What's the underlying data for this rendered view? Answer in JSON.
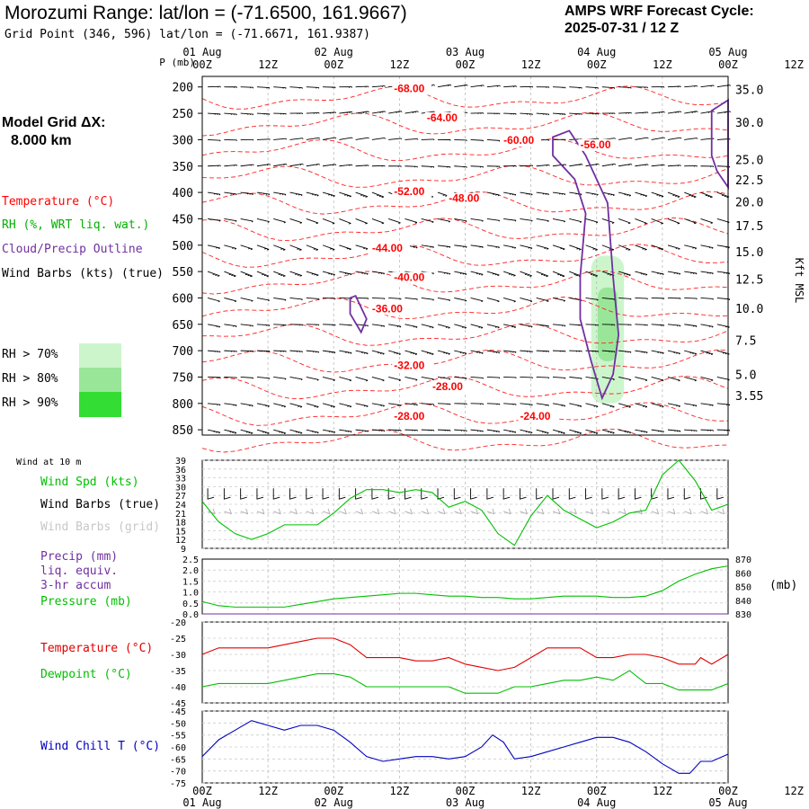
{
  "header": {
    "title": "Morozumi Range:  lat/lon = (-71.6500, 161.9667)",
    "grid_point": "Grid Point (346, 596) lat/lon = (-71.6671, 161.9387)",
    "cycle_line1": "AMPS WRF Forecast Cycle:",
    "cycle_line2": "2025-07-31 / 12  Z"
  },
  "model_grid": {
    "label": "Model Grid ΔX:",
    "value": "8.000 km"
  },
  "colors": {
    "temperature": "#ff0000",
    "dewpoint": "#00c000",
    "rh": "#00b000",
    "cloud": "#7030a0",
    "wind_chill": "#0000c0",
    "rh70": "#ccf5cc",
    "rh80": "#99e699",
    "rh90": "#33dd33"
  },
  "legend": {
    "temperature": "Temperature (°C)",
    "rh": "RH (%, WRT liq. wat.)",
    "cloud": "Cloud/Precip Outline",
    "wind_barbs": "Wind Barbs (kts) (true)",
    "rh70": "RH > 70%",
    "rh80": "RH > 80%",
    "rh90": "RH > 90%"
  },
  "time_axis": {
    "top_dates": [
      "01 Aug",
      "02 Aug",
      "03 Aug",
      "04 Aug",
      "05 Aug"
    ],
    "hours": [
      "00Z",
      "12Z",
      "00Z",
      "12Z",
      "00Z",
      "12Z",
      "00Z",
      "12Z",
      "00Z",
      "12Z"
    ],
    "bottom_dates": [
      "01 Aug",
      "02 Aug",
      "03 Aug",
      "04 Aug",
      "05 Aug"
    ],
    "range_hours": [
      0,
      96
    ]
  },
  "chart_data": [
    {
      "type": "heatmap",
      "pressure_axis_label": "P (mb)",
      "pressure_ticks": [
        200,
        250,
        300,
        350,
        400,
        450,
        500,
        550,
        600,
        650,
        700,
        750,
        800,
        850
      ],
      "pressure_range": [
        180,
        860
      ],
      "height_axis_label": "Kft MSL",
      "height_ticks": [
        {
          "label": "35.0",
          "p": 205
        },
        {
          "label": "30.0",
          "p": 267
        },
        {
          "label": "25.0",
          "p": 338
        },
        {
          "label": "22.5",
          "p": 376
        },
        {
          "label": "20.0",
          "p": 418
        },
        {
          "label": "17.5",
          "p": 463
        },
        {
          "label": "15.0",
          "p": 512
        },
        {
          "label": "12.5",
          "p": 564
        },
        {
          "label": "10.0",
          "p": 620
        },
        {
          "label": "7.5",
          "p": 680
        },
        {
          "label": "5.0",
          "p": 745
        },
        {
          "label": "3.55",
          "p": 785
        }
      ],
      "temperature_labels": [
        {
          "text": "-68.00",
          "t": 35,
          "p": 210
        },
        {
          "text": "-64.00",
          "t": 41,
          "p": 265
        },
        {
          "text": "-60.00",
          "t": 55,
          "p": 308
        },
        {
          "text": "-56.00",
          "t": 69,
          "p": 316
        },
        {
          "text": "-52.00",
          "t": 35,
          "p": 405
        },
        {
          "text": "-48.00",
          "t": 45,
          "p": 418
        },
        {
          "text": "-44.00",
          "t": 31,
          "p": 512
        },
        {
          "text": "-40.00",
          "t": 35,
          "p": 568
        },
        {
          "text": "-36.00",
          "t": 31,
          "p": 627
        },
        {
          "text": "-32.00",
          "t": 35,
          "p": 735
        },
        {
          "text": "-28.00",
          "t": 42,
          "p": 775
        },
        {
          "text": "-28.00",
          "t": 35,
          "p": 831
        },
        {
          "text": "-24.00",
          "t": 58,
          "p": 831
        }
      ],
      "rh_region": {
        "t_range": [
          71,
          77
        ],
        "p_range": [
          520,
          800
        ],
        "levels": [
          "RH > 70%",
          "RH > 80%"
        ]
      },
      "cloud_outline": [
        {
          "t": 64,
          "p": 295
        },
        {
          "t": 67,
          "p": 283
        },
        {
          "t": 70,
          "p": 330
        },
        {
          "t": 74,
          "p": 420
        },
        {
          "t": 75,
          "p": 560
        },
        {
          "t": 76,
          "p": 670
        },
        {
          "t": 75,
          "p": 745
        },
        {
          "t": 73,
          "p": 790
        },
        {
          "t": 71,
          "p": 720
        },
        {
          "t": 69,
          "p": 640
        },
        {
          "t": 69,
          "p": 560
        },
        {
          "t": 70,
          "p": 440
        },
        {
          "t": 68,
          "p": 375
        },
        {
          "t": 64,
          "p": 330
        }
      ],
      "cloud_outline_2": [
        {
          "t": 93,
          "p": 245
        },
        {
          "t": 96,
          "p": 225
        },
        {
          "t": 96,
          "p": 390
        },
        {
          "t": 94,
          "p": 360
        },
        {
          "t": 93,
          "p": 330
        }
      ],
      "cloud_outline_3": [
        {
          "t": 27,
          "p": 600
        },
        {
          "t": 28,
          "p": 596
        },
        {
          "t": 30,
          "p": 640
        },
        {
          "t": 29,
          "p": 665
        },
        {
          "t": 27,
          "p": 630
        }
      ]
    },
    {
      "type": "line",
      "title": "Wind at 10 m",
      "series": [
        {
          "name": "Wind Spd (kts)",
          "color": "#00c000"
        }
      ],
      "labels": [
        "Wind Spd (kts)",
        "Wind Barbs (true)",
        "Wind Barbs (grid)"
      ],
      "y_ticks": [
        9,
        12,
        15,
        18,
        21,
        24,
        27,
        30,
        33,
        36,
        39
      ],
      "ylim": [
        9,
        39
      ],
      "x": [
        0,
        3,
        6,
        9,
        12,
        15,
        18,
        21,
        24,
        27,
        30,
        33,
        36,
        39,
        42,
        45,
        48,
        51,
        54,
        57,
        60,
        63,
        66,
        69,
        72,
        75,
        78,
        81,
        84,
        87,
        90,
        93,
        96
      ],
      "values": [
        25,
        18,
        14,
        12,
        14,
        17,
        17,
        17,
        21,
        26,
        29,
        29,
        28,
        29,
        28,
        23,
        25,
        22,
        14,
        10,
        20,
        27,
        22,
        19,
        16,
        18,
        21,
        22,
        34,
        39,
        32,
        22,
        24
      ]
    },
    {
      "type": "line",
      "labels": [
        "Precip (mm)",
        "liq. equiv.",
        "3-hr accum",
        "Pressure (mb)"
      ],
      "precip_color": "#7030a0",
      "pressure_color": "#00c000",
      "y_left_ticks": [
        "0.0",
        "0.5",
        "1.0",
        "1.5",
        "2.0",
        "2.5"
      ],
      "y_left_range": [
        0,
        2.5
      ],
      "y_right_ticks": [
        "830",
        "840",
        "850",
        "860",
        "870"
      ],
      "y_right_range": [
        830,
        870
      ],
      "y_right_label": "(mb)",
      "x": [
        0,
        3,
        6,
        9,
        12,
        15,
        18,
        21,
        24,
        27,
        30,
        33,
        36,
        39,
        42,
        45,
        48,
        51,
        54,
        57,
        60,
        63,
        66,
        69,
        72,
        75,
        78,
        81,
        84,
        87,
        90,
        93,
        96
      ],
      "pressure": [
        839,
        836,
        835,
        835,
        835,
        835,
        837,
        839,
        841,
        842,
        843,
        844,
        845,
        845,
        844,
        843,
        843,
        842,
        842,
        841,
        841,
        842,
        843,
        843,
        843,
        842,
        842,
        843,
        847,
        854,
        859,
        863,
        865
      ],
      "precip": [
        0,
        0,
        0,
        0,
        0,
        0,
        0,
        0,
        0,
        0,
        0,
        0,
        0,
        0,
        0,
        0,
        0,
        0,
        0,
        0,
        0,
        0,
        0,
        0,
        0,
        0,
        0,
        0,
        0,
        0,
        0,
        0,
        0
      ]
    },
    {
      "type": "line",
      "series": [
        {
          "name": "Temperature (°C)",
          "color": "#e00000",
          "values": [
            -30,
            -28,
            -28,
            -28,
            -28,
            -27,
            -26,
            -25,
            -25,
            -27,
            -31,
            -31,
            -31,
            -32,
            -32,
            -31,
            -33,
            -34,
            -35,
            -34,
            -31,
            -28,
            -28,
            -28,
            -31,
            -31,
            -30,
            -30,
            -31,
            -33,
            -33,
            -31,
            -33,
            -30
          ]
        },
        {
          "name": "Dewpoint (°C)",
          "color": "#00c000",
          "values": [
            -40,
            -39,
            -39,
            -39,
            -39,
            -38,
            -37,
            -36,
            -36,
            -37,
            -40,
            -40,
            -40,
            -40,
            -40,
            -40,
            -42,
            -42,
            -42,
            -40,
            -40,
            -39,
            -38,
            -38,
            -37,
            -38,
            -35,
            -39,
            -39,
            -41,
            -41,
            -41,
            -41,
            -39
          ]
        }
      ],
      "x": [
        0,
        3,
        6,
        9,
        12,
        15,
        18,
        21,
        24,
        27,
        30,
        33,
        36,
        39,
        42,
        45,
        48,
        51,
        54,
        57,
        60,
        63,
        66,
        69,
        72,
        75,
        78,
        81,
        84,
        87,
        90,
        91,
        93,
        96
      ],
      "y_ticks": [
        -20,
        -25,
        -30,
        -35,
        -40,
        -45
      ],
      "ylim": [
        -45,
        -20
      ]
    },
    {
      "type": "line",
      "series": [
        {
          "name": "Wind Chill T (°C)",
          "color": "#0000c0",
          "values": [
            -64,
            -57,
            -53,
            -49,
            -51,
            -53,
            -51,
            -51,
            -53,
            -58,
            -64,
            -66,
            -65,
            -64,
            -64,
            -65,
            -64,
            -60,
            -55,
            -58,
            -65,
            -64,
            -62,
            -60,
            -58,
            -56,
            -56,
            -58,
            -62,
            -67,
            -71,
            -71,
            -66,
            -66,
            -63
          ]
        }
      ],
      "x": [
        0,
        3,
        6,
        9,
        12,
        15,
        18,
        21,
        24,
        27,
        30,
        33,
        36,
        39,
        42,
        45,
        48,
        51,
        53,
        55,
        57,
        60,
        63,
        66,
        69,
        72,
        75,
        78,
        81,
        84,
        87,
        89,
        91,
        93,
        96
      ],
      "y_ticks": [
        -45,
        -50,
        -55,
        -60,
        -65,
        -70,
        -75
      ],
      "ylim": [
        -75,
        -45
      ]
    }
  ]
}
